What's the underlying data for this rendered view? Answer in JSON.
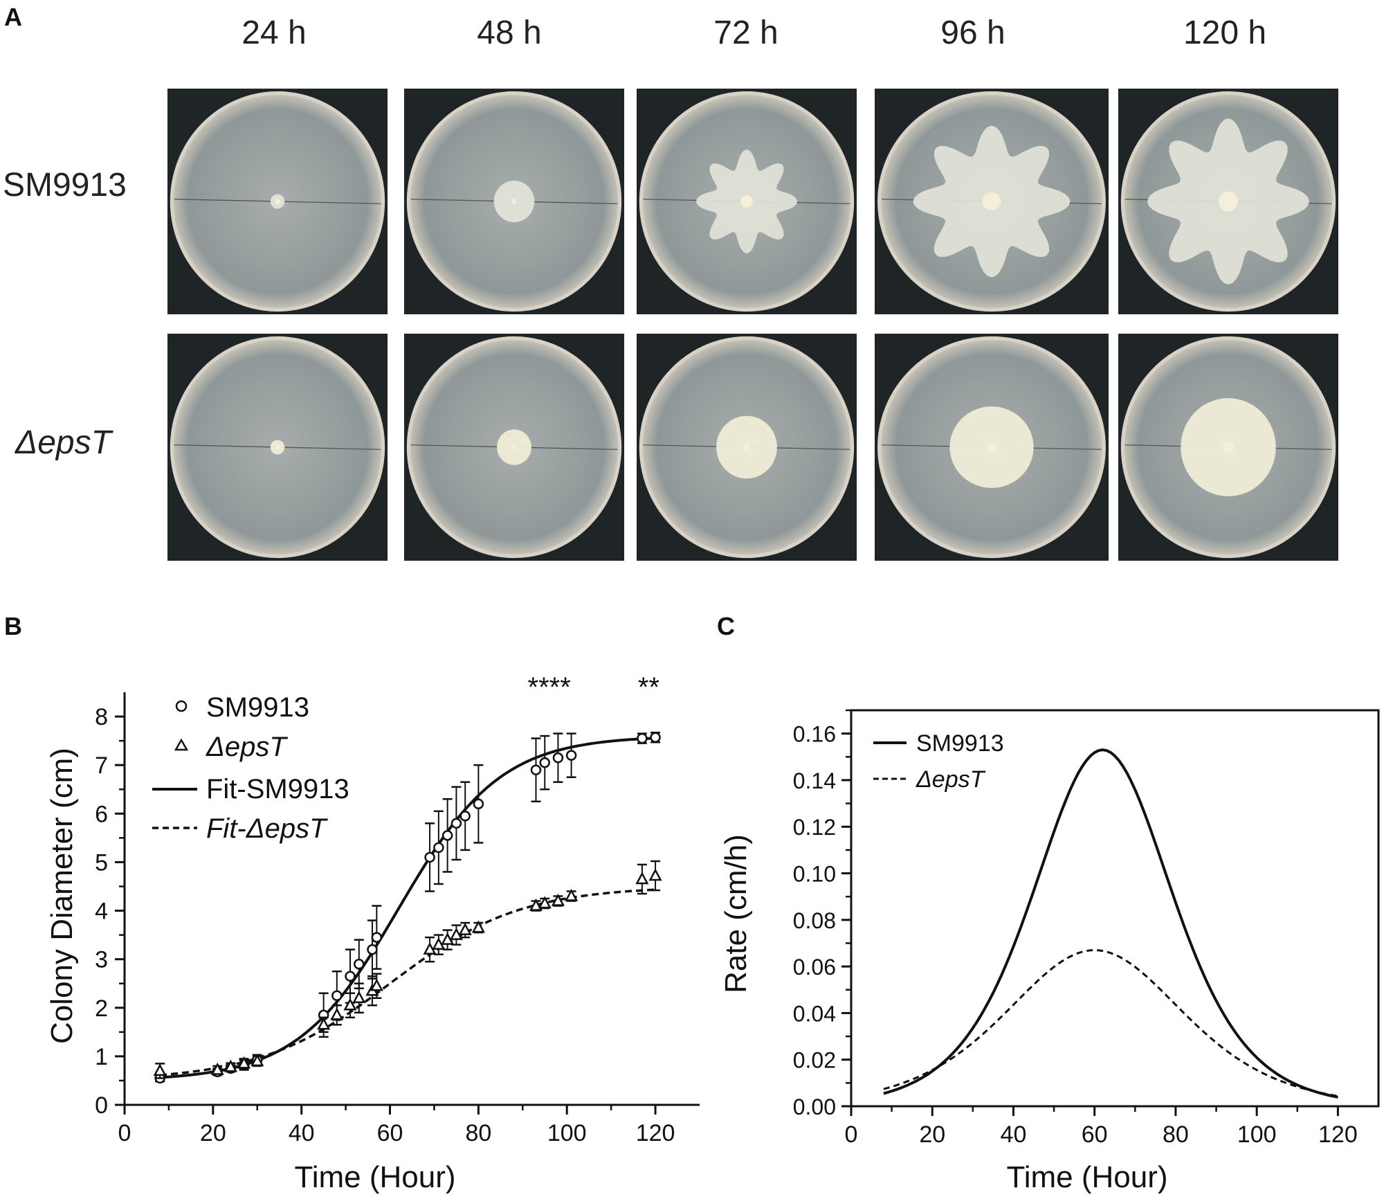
{
  "panels": {
    "a": "A",
    "b": "B",
    "c": "C"
  },
  "panel_a": {
    "timepoints": [
      "24 h",
      "48 h",
      "72 h",
      "96 h",
      "120 h"
    ],
    "rows": [
      {
        "label": "SM9913",
        "italic": false
      },
      {
        "label": "ΔepsT",
        "italic": true
      }
    ],
    "colony_colors": {
      "sm9913": "#e2e3d8",
      "epsT": "#efecd6",
      "plate": "#8f9898",
      "background": "#1f2426"
    }
  },
  "chart_data": [
    {
      "type": "scatter",
      "panel": "B",
      "xlabel": "Time (Hour)",
      "ylabel": "Colony Diameter (cm)",
      "xlim": [
        0,
        130
      ],
      "ylim": [
        0,
        8.5
      ],
      "xticks": [
        0,
        20,
        40,
        60,
        80,
        100,
        120
      ],
      "yticks": [
        0,
        1,
        2,
        3,
        4,
        5,
        6,
        7,
        8
      ],
      "legend_position": "top-left",
      "legend": {
        "sm9913": "SM9913",
        "epst": "ΔepsT",
        "fit_sm9913": "Fit-SM9913",
        "fit_epst_prefix": "Fit-",
        "fit_epst_suffix": "ΔepsT"
      },
      "annotations": [
        {
          "text": "****",
          "x": 96
        },
        {
          "text": "**",
          "x": 118.5
        }
      ],
      "series": [
        {
          "name": "SM9913",
          "marker": "circle",
          "x": [
            8,
            21,
            24,
            27,
            30,
            45,
            48,
            51,
            53,
            56,
            57,
            69,
            71,
            73,
            75,
            77,
            80,
            93,
            95,
            98,
            101,
            117,
            120
          ],
          "y": [
            0.55,
            0.68,
            0.75,
            0.82,
            0.93,
            1.85,
            2.25,
            2.65,
            2.9,
            3.2,
            3.45,
            5.1,
            5.3,
            5.55,
            5.8,
            5.95,
            6.2,
            6.9,
            7.05,
            7.15,
            7.2,
            7.55,
            7.57
          ],
          "error": [
            0.07,
            0.07,
            0.07,
            0.1,
            0.1,
            0.45,
            0.5,
            0.55,
            0.5,
            0.6,
            0.65,
            0.7,
            0.75,
            0.75,
            0.75,
            0.7,
            0.8,
            0.65,
            0.55,
            0.5,
            0.45,
            0.1,
            0.1
          ]
        },
        {
          "name": "ΔepsT",
          "marker": "triangle",
          "x": [
            8,
            21,
            24,
            27,
            30,
            45,
            48,
            51,
            53,
            56,
            57,
            69,
            71,
            73,
            75,
            77,
            80,
            93,
            95,
            98,
            101,
            117,
            120
          ],
          "y": [
            0.7,
            0.72,
            0.78,
            0.85,
            0.9,
            1.65,
            1.85,
            2.05,
            2.2,
            2.35,
            2.45,
            3.2,
            3.3,
            3.4,
            3.5,
            3.6,
            3.65,
            4.1,
            4.15,
            4.2,
            4.3,
            4.65,
            4.72
          ],
          "error": [
            0.15,
            0.08,
            0.08,
            0.1,
            0.1,
            0.15,
            0.2,
            0.25,
            0.3,
            0.3,
            0.25,
            0.25,
            0.2,
            0.2,
            0.2,
            0.15,
            0.1,
            0.1,
            0.1,
            0.1,
            0.1,
            0.3,
            0.3
          ]
        }
      ],
      "fits": [
        {
          "name": "Fit-SM9913",
          "style": "solid",
          "lower": 0.5,
          "upper": 7.6,
          "center": 62,
          "k": 0.087
        },
        {
          "name": "Fit-ΔepsT",
          "style": "dashed",
          "lower": 0.5,
          "upper": 4.5,
          "center": 60,
          "k": 0.068
        }
      ]
    },
    {
      "type": "line",
      "panel": "C",
      "xlabel": "Time (Hour)",
      "ylabel": "Rate (cm/h)",
      "xlim": [
        0,
        130
      ],
      "ylim": [
        0,
        0.17
      ],
      "xticks": [
        0,
        20,
        40,
        60,
        80,
        100,
        120
      ],
      "yticks": [
        "0.00",
        "0.02",
        "0.04",
        "0.06",
        "0.08",
        "0.10",
        "0.12",
        "0.14",
        "0.16"
      ],
      "legend_position": "top-left",
      "series": [
        {
          "name": "SM9913",
          "style": "solid",
          "peak_x": 62,
          "peak_y": 0.153,
          "k": 0.087
        },
        {
          "name": "ΔepsT",
          "style": "dashed",
          "peak_x": 60,
          "peak_y": 0.067,
          "k": 0.068
        }
      ],
      "x_range": [
        8,
        120
      ]
    }
  ]
}
